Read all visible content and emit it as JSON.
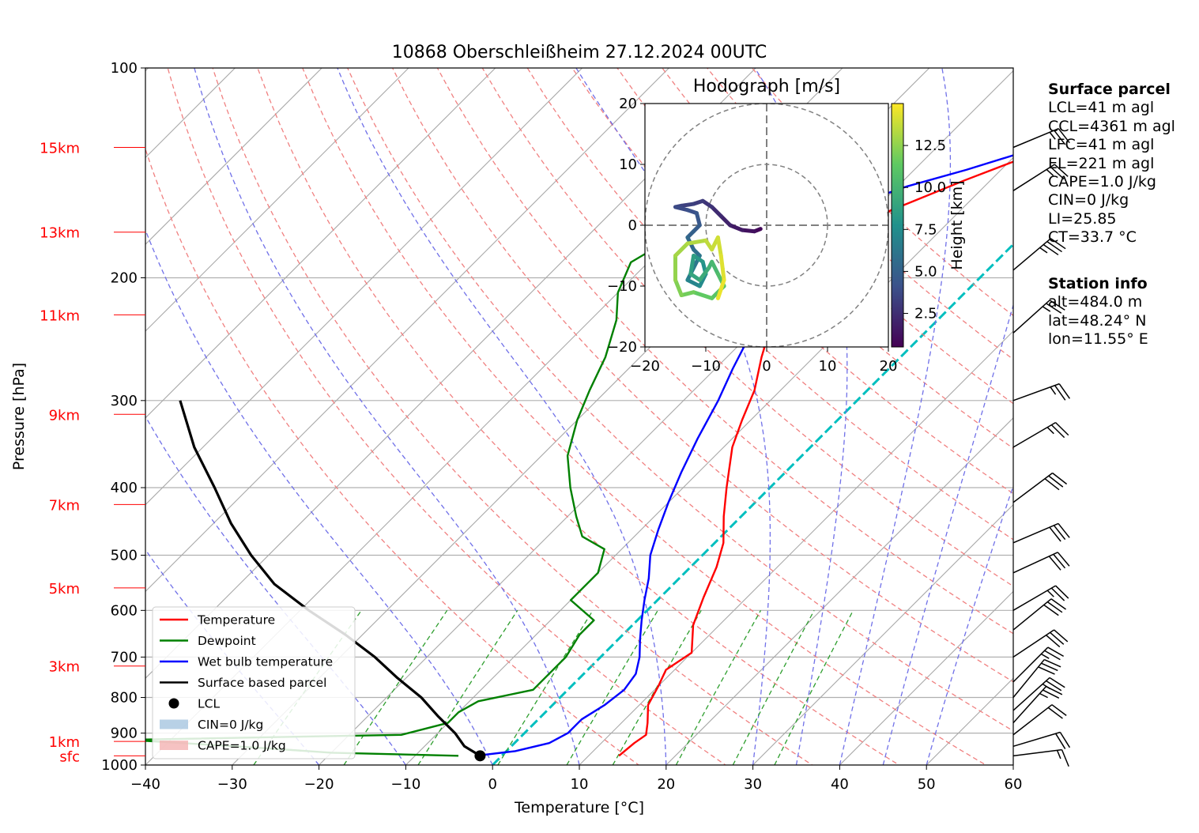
{
  "chart_data": [
    {
      "type": "line",
      "subtype": "skew-t log-p diagram",
      "title": "10868 Oberschleißheim 27.12.2024 00UTC",
      "xlabel": "Temperature [°C]",
      "ylabel": "Pressure [hPa]",
      "xlim": [
        -40,
        60
      ],
      "ylim": [
        1000,
        100
      ],
      "y_scale": "log",
      "grid": true,
      "x_ticks": [
        "−40",
        "−30",
        "−20",
        "−10",
        "0",
        "10",
        "20",
        "30",
        "40",
        "50",
        "60"
      ],
      "y_ticks": [
        "100",
        "200",
        "300",
        "400",
        "500",
        "600",
        "700",
        "800",
        "900",
        "1000"
      ],
      "height_labels": [
        {
          "label": "15km",
          "p": 130
        },
        {
          "label": "13km",
          "p": 172
        },
        {
          "label": "11km",
          "p": 226
        },
        {
          "label": "9km",
          "p": 314
        },
        {
          "label": "7km",
          "p": 423
        },
        {
          "label": "5km",
          "p": 557
        },
        {
          "label": "3km",
          "p": 721
        },
        {
          "label": "1km",
          "p": 925
        },
        {
          "label": "sfc",
          "p": 970
        }
      ],
      "legend_position": "lower-left",
      "series": [
        {
          "name": "Temperature",
          "color": "#ff0000",
          "points": [
            [
              13.5,
              970
            ],
            [
              13.8,
              930
            ],
            [
              14.2,
              905
            ],
            [
              13,
              870
            ],
            [
              11,
              820
            ],
            [
              10,
              770
            ],
            [
              9,
              730
            ],
            [
              10,
              690
            ],
            [
              7,
              630
            ],
            [
              5,
              575
            ],
            [
              3,
              520
            ],
            [
              1,
              480
            ],
            [
              -2,
              440
            ],
            [
              -5,
              400
            ],
            [
              -9,
              350
            ],
            [
              -11,
              320
            ],
            [
              -13,
              290
            ],
            [
              -16,
              260
            ],
            [
              -19,
              230
            ],
            [
              -21,
              210
            ],
            [
              -22,
              190
            ],
            [
              -21,
              175
            ],
            [
              -18,
              160
            ],
            [
              -13,
              145
            ],
            [
              -9,
              135
            ],
            [
              -6,
              126
            ]
          ]
        },
        {
          "name": "Dewpoint",
          "color": "#008000",
          "points": [
            [
              -5,
              970
            ],
            [
              -20,
              960
            ],
            [
              -27,
              948
            ],
            [
              -35,
              935
            ],
            [
              -45,
              920
            ],
            [
              -14,
              905
            ],
            [
              -10,
              870
            ],
            [
              -10,
              840
            ],
            [
              -9,
              810
            ],
            [
              -4,
              780
            ],
            [
              -4,
              740
            ],
            [
              -4,
              700
            ],
            [
              -5,
              650
            ],
            [
              -5,
              620
            ],
            [
              -10,
              580
            ],
            [
              -10,
              530
            ],
            [
              -12,
              490
            ],
            [
              -16,
              470
            ],
            [
              -19,
              440
            ],
            [
              -23,
              400
            ],
            [
              -27,
              360
            ],
            [
              -30,
              320
            ],
            [
              -32,
              290
            ],
            [
              -34,
              260
            ],
            [
              -37,
              230
            ],
            [
              -40,
              210
            ],
            [
              -42,
              190
            ],
            [
              -40,
              175
            ],
            [
              -39,
              160
            ],
            [
              -46,
              150
            ],
            [
              -42,
              140
            ],
            [
              -42,
              130
            ]
          ]
        },
        {
          "name": "Wet bulb temperature",
          "color": "#0000ff",
          "points": [
            [
              -3,
              970
            ],
            [
              1,
              955
            ],
            [
              4,
              930
            ],
            [
              5,
              900
            ],
            [
              5,
              860
            ],
            [
              6,
              820
            ],
            [
              6.5,
              780
            ],
            [
              6,
              740
            ],
            [
              4.5,
              700
            ],
            [
              2.5,
              660
            ],
            [
              0.5,
              620
            ],
            [
              -1.5,
              580
            ],
            [
              -3.5,
              540
            ],
            [
              -6,
              500
            ],
            [
              -8,
              460
            ],
            [
              -10,
              420
            ],
            [
              -12,
              380
            ],
            [
              -14,
              340
            ],
            [
              -16,
              300
            ],
            [
              -18,
              270
            ],
            [
              -20,
              240
            ],
            [
              -22,
              215
            ],
            [
              -23,
              200
            ],
            [
              -24,
              185
            ],
            [
              -25,
              175
            ],
            [
              -24,
              160
            ],
            [
              -19,
              148
            ],
            [
              -14,
              140
            ],
            [
              -10,
              133
            ],
            [
              -6,
              126
            ]
          ]
        },
        {
          "name": "Surface based parcel",
          "color": "#000000",
          "points": [
            [
              -2.5,
              970
            ],
            [
              -5.4,
              940
            ],
            [
              -8,
              900
            ],
            [
              -12,
              850
            ],
            [
              -16,
              800
            ],
            [
              -21,
              750
            ],
            [
              -26,
              700
            ],
            [
              -32,
              650
            ],
            [
              -39,
              600
            ],
            [
              -46,
              550
            ],
            [
              -52,
              500
            ],
            [
              -58,
              450
            ],
            [
              -64,
              400
            ],
            [
              -71,
              350
            ],
            [
              -78,
              300
            ]
          ]
        },
        {
          "name": "LCL",
          "color": "#000000",
          "points": [
            [
              -2.5,
              970
            ]
          ]
        },
        {
          "name": "CIN=0 J/kg",
          "color": "#a6c6e0",
          "points": []
        },
        {
          "name": "CAPE=1.0 J/kg",
          "color": "#f4b3b3",
          "points": []
        }
      ],
      "reference_lines": {
        "isotherms_step_c": 10,
        "dry_adiabats_theta_k": [
          290,
          300,
          310,
          320,
          330,
          340,
          350,
          360,
          370,
          380,
          390,
          400,
          410,
          420,
          430
        ],
        "moist_adiabats_start_c": [
          -20,
          -10,
          0,
          10,
          20,
          30,
          35,
          40,
          45,
          50
        ],
        "mixing_ratio_lines_gkg": [
          0.4,
          1,
          2,
          4,
          7,
          10,
          16,
          24,
          32
        ],
        "zero_isotherm_color": "#00bfbf"
      },
      "wind_barbs": [
        {
          "p": 970,
          "u": -8,
          "v": -1
        },
        {
          "p": 940,
          "u": -10,
          "v": -3
        },
        {
          "p": 905,
          "u": -9,
          "v": -7
        },
        {
          "p": 870,
          "u": -9,
          "v": -10
        },
        {
          "p": 835,
          "u": -10,
          "v": -9
        },
        {
          "p": 800,
          "u": -9,
          "v": -11
        },
        {
          "p": 760,
          "u": -10,
          "v": -10
        },
        {
          "p": 700,
          "u": -12,
          "v": -8
        },
        {
          "p": 640,
          "u": -11,
          "v": -9
        },
        {
          "p": 600,
          "u": -12,
          "v": -7
        },
        {
          "p": 530,
          "u": -13,
          "v": -6
        },
        {
          "p": 480,
          "u": -14,
          "v": -6
        },
        {
          "p": 420,
          "u": -12,
          "v": -9
        },
        {
          "p": 350,
          "u": -12,
          "v": -7
        },
        {
          "p": 300,
          "u": -11,
          "v": -4
        },
        {
          "p": 240,
          "u": -10,
          "v": -9
        },
        {
          "p": 195,
          "u": -13,
          "v": -11
        },
        {
          "p": 150,
          "u": -11,
          "v": -7
        },
        {
          "p": 130,
          "u": -12,
          "v": -5
        }
      ]
    },
    {
      "type": "scatter",
      "subtype": "hodograph",
      "title": "Hodograph [m/s]",
      "xlim": [
        -20,
        20
      ],
      "ylim": [
        -20,
        20
      ],
      "x_ticks": [
        "−20",
        "−10",
        "0",
        "10",
        "20"
      ],
      "y_ticks": [
        "−20",
        "−10",
        "0",
        "10",
        "20"
      ],
      "rings": [
        10,
        20
      ],
      "colorbar": {
        "label": "Height [km]",
        "ticks": [
          "2.5",
          "5.0",
          "7.5",
          "10.0",
          "12.5"
        ],
        "range": [
          0.5,
          15
        ]
      },
      "points": [
        [
          -1,
          -0.6,
          0.5
        ],
        [
          -2,
          -1,
          0.8
        ],
        [
          -4,
          -0.8,
          1.2
        ],
        [
          -6,
          0,
          1.6
        ],
        [
          -7.5,
          1.5,
          2
        ],
        [
          -9,
          3,
          2.4
        ],
        [
          -10.5,
          4,
          2.8
        ],
        [
          -12,
          3.5,
          3.1
        ],
        [
          -14,
          3.2,
          3.3
        ],
        [
          -15,
          3,
          3.5
        ],
        [
          -13,
          2.5,
          3.8
        ],
        [
          -11.5,
          2,
          4.1
        ],
        [
          -11,
          0,
          4.4
        ],
        [
          -12,
          -1,
          4.7
        ],
        [
          -13,
          -2,
          5
        ],
        [
          -12,
          -4,
          5.4
        ],
        [
          -11,
          -5,
          5.8
        ],
        [
          -12,
          -7,
          6.2
        ],
        [
          -13,
          -9,
          6.6
        ],
        [
          -11,
          -10,
          7
        ],
        [
          -10,
          -8,
          7.4
        ],
        [
          -10.5,
          -6,
          7.8
        ],
        [
          -12,
          -5,
          8.2
        ],
        [
          -12.5,
          -8,
          8.6
        ],
        [
          -11,
          -9,
          9
        ],
        [
          -9.5,
          -7,
          9.4
        ],
        [
          -9,
          -6,
          9.8
        ],
        [
          -8,
          -8,
          10.2
        ],
        [
          -7,
          -10,
          10.6
        ],
        [
          -9,
          -12,
          11
        ],
        [
          -12,
          -11,
          11.4
        ],
        [
          -14,
          -11.5,
          11.8
        ],
        [
          -15,
          -9,
          12.2
        ],
        [
          -15,
          -5,
          12.6
        ],
        [
          -13,
          -3,
          13
        ],
        [
          -10,
          -2.5,
          13.3
        ],
        [
          -9,
          -4,
          13.6
        ],
        [
          -8,
          -2,
          13.8
        ],
        [
          -7.5,
          -5,
          14
        ],
        [
          -7,
          -9,
          14.3
        ],
        [
          -8,
          -12,
          14.6
        ]
      ]
    }
  ],
  "surface_parcel": {
    "heading": "Surface parcel",
    "lines": [
      "LCL=41 m agl",
      "CCL=4361 m agl",
      "LFC=41 m agl",
      "EL=221 m agl",
      "CAPE=1.0 J/kg",
      "CIN=0 J/kg",
      "LI=25.85",
      "CT=33.7 °C"
    ]
  },
  "station_info": {
    "heading": "Station info",
    "lines": [
      "alt=484.0 m",
      "lat=48.24° N",
      "lon=11.55° E"
    ]
  }
}
